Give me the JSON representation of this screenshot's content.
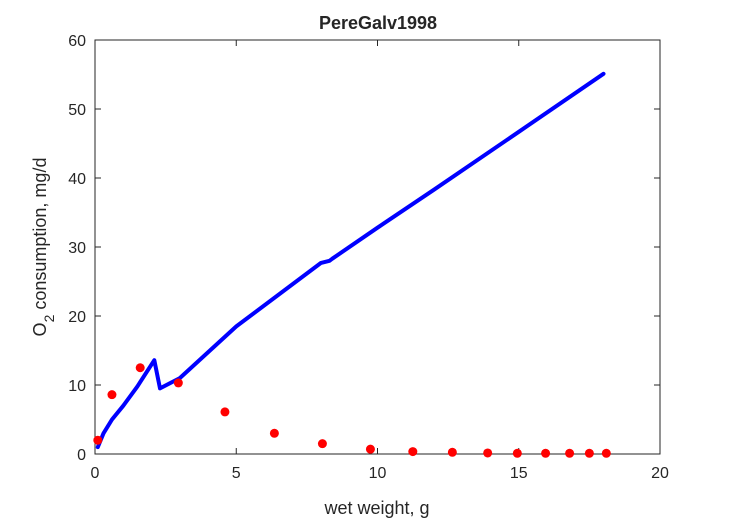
{
  "chart_data": {
    "type": "line",
    "title": "PereGalv1998",
    "xlabel": "wet weight, g",
    "ylabel_main": "O",
    "ylabel_sub": "2",
    "ylabel_rest": " consumption, mg/d",
    "xlim": [
      0,
      20
    ],
    "ylim": [
      0,
      60
    ],
    "xticks": [
      0,
      5,
      10,
      15,
      20
    ],
    "yticks": [
      0,
      10,
      20,
      30,
      40,
      50,
      60
    ],
    "grid": false,
    "series": [
      {
        "kind": "scatter",
        "color": "#ff0000",
        "x": [
          0.1,
          0.6,
          1.6,
          2.95,
          4.6,
          6.35,
          8.05,
          9.75,
          11.25,
          12.65,
          13.9,
          14.95,
          15.95,
          16.8,
          17.5,
          18.1
        ],
        "y": [
          2.0,
          8.6,
          12.5,
          10.3,
          6.1,
          3.0,
          1.5,
          0.7,
          0.35,
          0.25,
          0.15,
          0.1,
          0.1,
          0.1,
          0.1,
          0.1
        ]
      },
      {
        "kind": "line",
        "color": "#0000ff",
        "x": [
          0.1,
          0.3,
          0.6,
          1.0,
          1.5,
          2.1,
          2.3,
          3.0,
          5.0,
          8.0,
          8.3,
          8.4,
          10.0,
          12.0,
          15.0,
          18.0
        ],
        "y": [
          1.0,
          3.0,
          5.0,
          7.0,
          9.8,
          13.6,
          9.5,
          11.0,
          18.5,
          27.7,
          28.0,
          28.3,
          32.8,
          38.3,
          46.7,
          55.1
        ]
      }
    ]
  }
}
